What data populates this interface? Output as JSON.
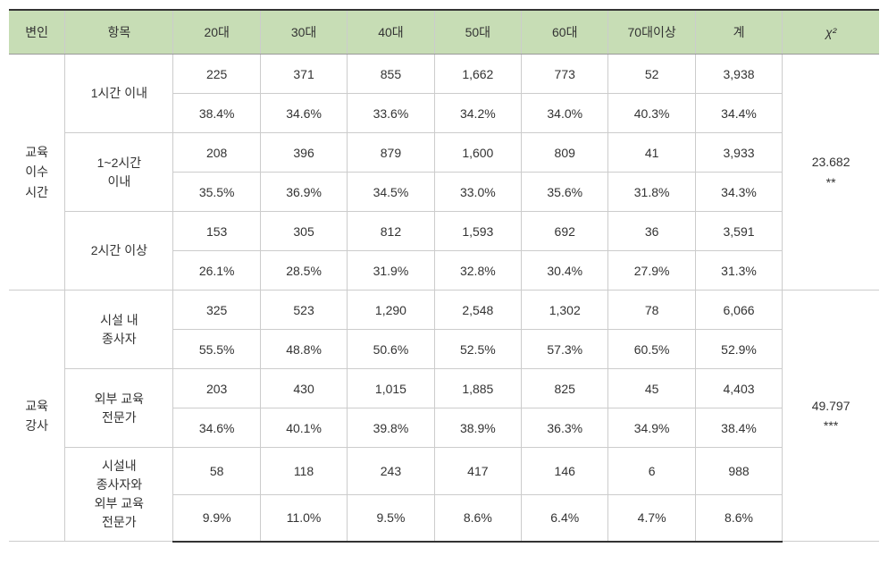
{
  "table": {
    "headers": {
      "variable": "변인",
      "item": "항목",
      "age20": "20대",
      "age30": "30대",
      "age40": "40대",
      "age50": "50대",
      "age60": "60대",
      "age70plus": "70대이상",
      "total": "계",
      "chi2": "χ²"
    },
    "column_widths": {
      "variable": "58px",
      "item": "112px",
      "data": "90px",
      "chi2": "100px"
    },
    "sections": [
      {
        "group_label": "교육\n이수\n시간",
        "chi2_value": "23.682\n**",
        "items": [
          {
            "label": "1시간 이내",
            "count": [
              "225",
              "371",
              "855",
              "1,662",
              "773",
              "52",
              "3,938"
            ],
            "pct": [
              "38.4%",
              "34.6%",
              "33.6%",
              "34.2%",
              "34.0%",
              "40.3%",
              "34.4%"
            ]
          },
          {
            "label": "1~2시간\n이내",
            "count": [
              "208",
              "396",
              "879",
              "1,600",
              "809",
              "41",
              "3,933"
            ],
            "pct": [
              "35.5%",
              "36.9%",
              "34.5%",
              "33.0%",
              "35.6%",
              "31.8%",
              "34.3%"
            ]
          },
          {
            "label": "2시간 이상",
            "count": [
              "153",
              "305",
              "812",
              "1,593",
              "692",
              "36",
              "3,591"
            ],
            "pct": [
              "26.1%",
              "28.5%",
              "31.9%",
              "32.8%",
              "30.4%",
              "27.9%",
              "31.3%"
            ]
          }
        ]
      },
      {
        "group_label": "교육\n강사",
        "chi2_value": "49.797\n***",
        "items": [
          {
            "label": "시설 내\n종사자",
            "count": [
              "325",
              "523",
              "1,290",
              "2,548",
              "1,302",
              "78",
              "6,066"
            ],
            "pct": [
              "55.5%",
              "48.8%",
              "50.6%",
              "52.5%",
              "57.3%",
              "60.5%",
              "52.9%"
            ]
          },
          {
            "label": "외부 교육\n전문가",
            "count": [
              "203",
              "430",
              "1,015",
              "1,885",
              "825",
              "45",
              "4,403"
            ],
            "pct": [
              "34.6%",
              "40.1%",
              "39.8%",
              "38.9%",
              "36.3%",
              "34.9%",
              "38.4%"
            ]
          },
          {
            "label": "시설내\n종사자와\n외부 교육\n전문가",
            "count": [
              "58",
              "118",
              "243",
              "417",
              "146",
              "6",
              "988"
            ],
            "pct": [
              "9.9%",
              "11.0%",
              "9.5%",
              "8.6%",
              "6.4%",
              "4.7%",
              "8.6%"
            ]
          }
        ]
      }
    ],
    "styling": {
      "header_bg": "#c7ddb5",
      "border_outer": "#333333",
      "border_inner": "#cccccc",
      "border_section": "#999999",
      "font_size": 14,
      "text_color": "#333333",
      "background": "#ffffff"
    }
  }
}
